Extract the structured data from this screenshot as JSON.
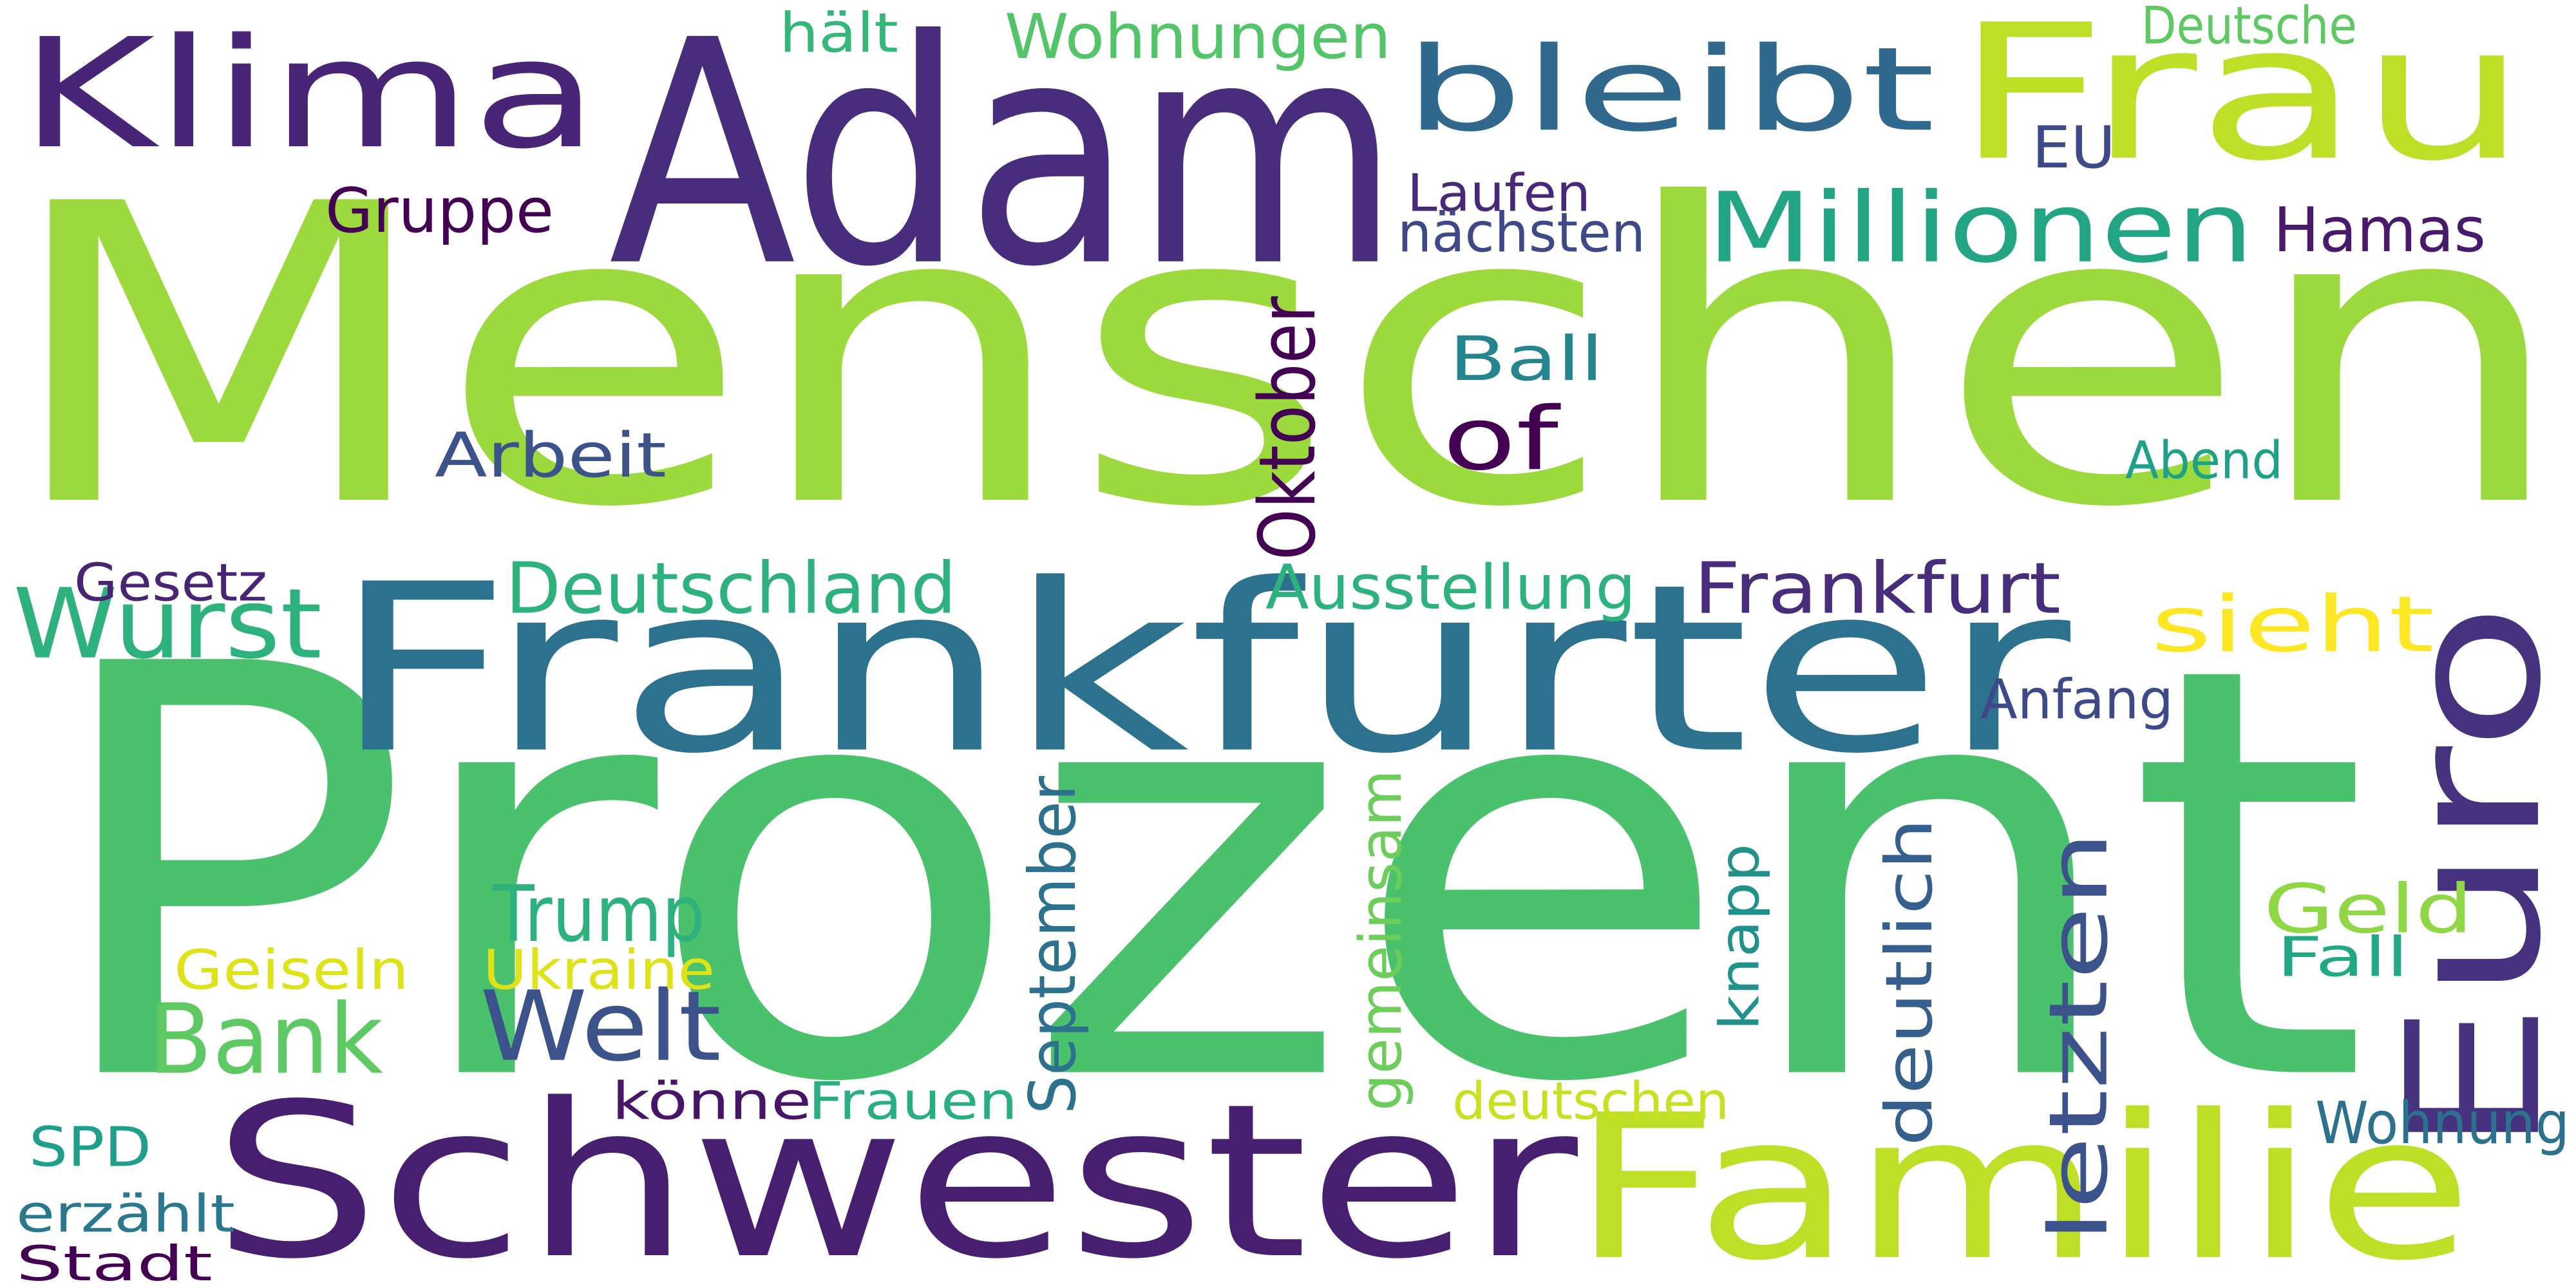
{
  "words": [
    {
      "text": "Menschen",
      "color": "#9bd93c"
    },
    {
      "text": "Prozent",
      "color": "#4ac16d"
    },
    {
      "text": "Frankfurter",
      "color": "#2c728e"
    },
    {
      "text": "Adam",
      "color": "#472d7b"
    },
    {
      "text": "Schwester",
      "color": "#481f70"
    },
    {
      "text": "Frau",
      "color": "#bddf26"
    },
    {
      "text": "Familie",
      "color": "#bddf26"
    },
    {
      "text": "Euro",
      "color": "#46327e"
    },
    {
      "text": "Klima",
      "color": "#482576"
    },
    {
      "text": "bleibt",
      "color": "#31688e"
    },
    {
      "text": "Millionen",
      "color": "#21a585"
    },
    {
      "text": "Wurst",
      "color": "#2db27d"
    },
    {
      "text": "letzten",
      "color": "#3b528b"
    },
    {
      "text": "Bank",
      "color": "#5ec962"
    },
    {
      "text": "Welt",
      "color": "#3b528b"
    },
    {
      "text": "Deutschland",
      "color": "#2db27d"
    },
    {
      "text": "sieht",
      "color": "#fde725"
    },
    {
      "text": "Frankfurt",
      "color": "#472d7b"
    },
    {
      "text": "Trump",
      "color": "#2db27d"
    },
    {
      "text": "Oktober",
      "color": "#440154"
    },
    {
      "text": "September",
      "color": "#2c728e"
    },
    {
      "text": "deutlich",
      "color": "#355f8d"
    },
    {
      "text": "Wohnungen",
      "color": "#52c569"
    },
    {
      "text": "Arbeit",
      "color": "#3b528b"
    },
    {
      "text": "Hamas",
      "color": "#481a6c"
    },
    {
      "text": "of",
      "color": "#440154"
    },
    {
      "text": "Ausstellung",
      "color": "#2db27d"
    },
    {
      "text": "Ball",
      "color": "#25858e"
    },
    {
      "text": "gemeinsam",
      "color": "#6ccd5a"
    },
    {
      "text": "knapp",
      "color": "#21918c"
    },
    {
      "text": "Gruppe",
      "color": "#440154"
    },
    {
      "text": "Geld",
      "color": "#8fd744"
    },
    {
      "text": "Geiseln",
      "color": "#dde318"
    },
    {
      "text": "Ukraine",
      "color": "#dde318"
    },
    {
      "text": "Wohnung",
      "color": "#2c728e"
    },
    {
      "text": "Anfang",
      "color": "#3e4989"
    },
    {
      "text": "Laufen",
      "color": "#482878"
    },
    {
      "text": "nächsten",
      "color": "#3e4989"
    },
    {
      "text": "deutschen",
      "color": "#c8e020"
    },
    {
      "text": "Frauen",
      "color": "#29af7f"
    },
    {
      "text": "SPD",
      "color": "#1f9e89"
    },
    {
      "text": "erzählt",
      "color": "#2a788e"
    },
    {
      "text": "Deutsche",
      "color": "#5ec962"
    },
    {
      "text": "Gesetz",
      "color": "#482475"
    },
    {
      "text": "Fall",
      "color": "#22a884"
    },
    {
      "text": "hält",
      "color": "#35b779"
    },
    {
      "text": "Abend",
      "color": "#1fa188"
    },
    {
      "text": "EU",
      "color": "#3e4989"
    },
    {
      "text": "Stadt",
      "color": "#440154"
    },
    {
      "text": "könne",
      "color": "#481467"
    }
  ]
}
